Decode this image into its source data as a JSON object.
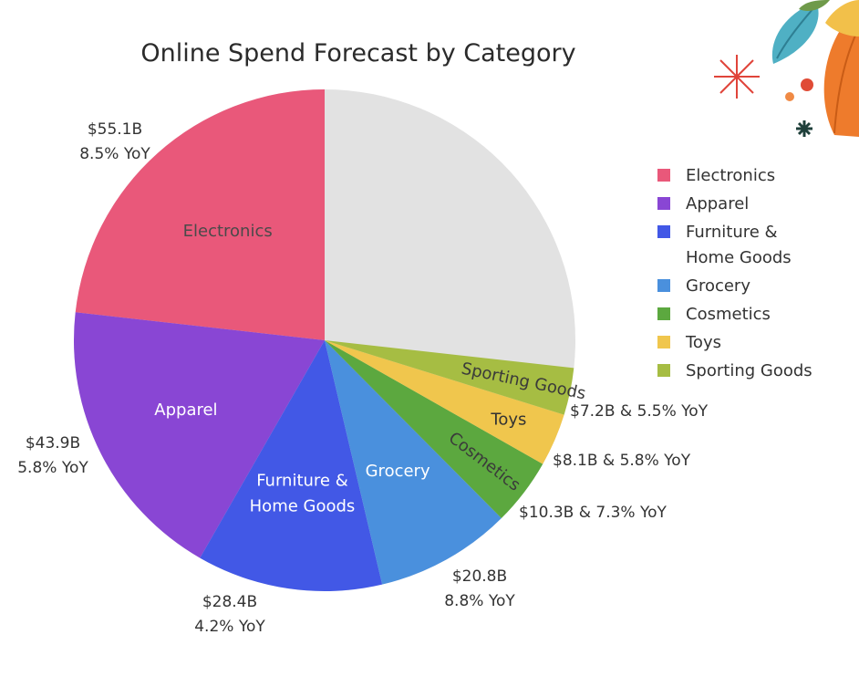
{
  "chart_data": {
    "type": "pie",
    "title": "Online Spend Forecast by Category",
    "start_angle_deg": 0,
    "direction": "counterclockwise",
    "remainder_color": "#e2e2e2",
    "slices": [
      {
        "name": "Electronics",
        "slice_label": [
          "Electronics"
        ],
        "value": 55.1,
        "yoy": 8.5,
        "color": "#e9587a",
        "label_color": "#4a4a4a",
        "rotate": false,
        "value_label": [
          "$55.1B",
          "8.5% YoY"
        ]
      },
      {
        "name": "Apparel",
        "slice_label": [
          "Apparel"
        ],
        "value": 43.9,
        "yoy": 5.8,
        "color": "#8946d4",
        "label_color": "#ffffff",
        "rotate": false,
        "value_label": [
          "$43.9B",
          "5.8% YoY"
        ]
      },
      {
        "name": "Furniture & Home Goods",
        "slice_label": [
          "Furniture &",
          "Home Goods"
        ],
        "value": 28.4,
        "yoy": 4.2,
        "color": "#4258e6",
        "label_color": "#ffffff",
        "rotate": false,
        "value_label": [
          "$28.4B",
          "4.2% YoY"
        ]
      },
      {
        "name": "Grocery",
        "slice_label": [
          "Grocery"
        ],
        "value": 20.8,
        "yoy": 8.8,
        "color": "#4a90dd",
        "label_color": "#ffffff",
        "rotate": false,
        "value_label": [
          "$20.8B",
          "8.8% YoY"
        ]
      },
      {
        "name": "Cosmetics",
        "slice_label": [
          "Cosmetics"
        ],
        "value": 10.3,
        "yoy": 7.3,
        "color": "#5ca83f",
        "label_color": "#3a3a3a",
        "rotate": true,
        "value_label": [
          "$10.3B & 7.3% YoY"
        ]
      },
      {
        "name": "Toys",
        "slice_label": [
          "Toys"
        ],
        "value": 8.1,
        "yoy": 5.8,
        "color": "#f0c64d",
        "label_color": "#333333",
        "rotate": false,
        "value_label": [
          "$8.1B & 5.8% YoY"
        ]
      },
      {
        "name": "Sporting Goods",
        "slice_label": [
          "Sporting Goods"
        ],
        "value": 7.2,
        "yoy": 5.5,
        "color": "#a6bd43",
        "label_color": "#3a3a3a",
        "rotate": true,
        "value_label": [
          "$7.2B & 5.5% YoY"
        ]
      }
    ],
    "legend": {
      "placement": "right",
      "items": [
        {
          "lines": [
            "Electronics"
          ],
          "color": "#e9587a"
        },
        {
          "lines": [
            "Apparel"
          ],
          "color": "#8946d4"
        },
        {
          "lines": [
            "Furniture &",
            "Home Goods"
          ],
          "color": "#4258e6"
        },
        {
          "lines": [
            "Grocery"
          ],
          "color": "#4a90dd"
        },
        {
          "lines": [
            "Cosmetics"
          ],
          "color": "#5ca83f"
        },
        {
          "lines": [
            "Toys"
          ],
          "color": "#f0c64d"
        },
        {
          "lines": [
            "Sporting Goods"
          ],
          "color": "#a6bd43"
        }
      ]
    }
  }
}
